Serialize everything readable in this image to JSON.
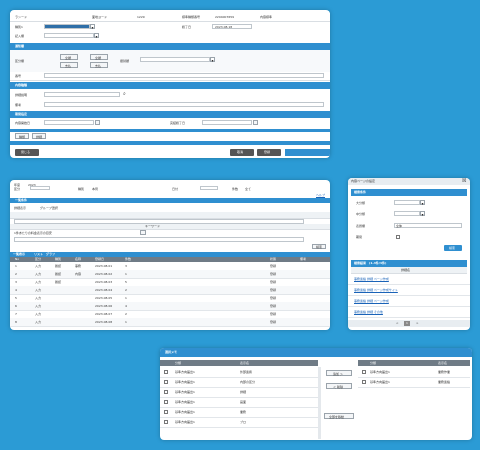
{
  "top_form": {
    "row1": [
      "ランード",
      "面地ヨード",
      "1229",
      "標準種類番号",
      "2204007659",
      "内容標準"
    ],
    "row2": [
      "種別1",
      "2023.08.18"
    ],
    "row3": [
      "記入欄"
    ],
    "section1": "通知欄",
    "s1_labels": [
      "区分欄",
      "番号"
    ],
    "options": [
      "全額",
      "全額",
      "支払",
      "支払",
      "振替額"
    ],
    "section2": "内容種類",
    "s2_labels": [
      "詳細説明",
      "備考"
    ],
    "section3": "期間指定",
    "s3_labels": [
      "内容開始日",
      "完結終了日"
    ],
    "tabs": [
      "種類",
      "詳細"
    ],
    "close_button": "閉じる",
    "cancel_button": "取消",
    "save_button": "登録"
  },
  "list_window": {
    "filter_labels": [
      "年度",
      "区分",
      "種別",
      "日付",
      "件数"
    ],
    "filter_values": [
      "2023",
      "本局",
      "全て"
    ],
    "help_link": "ヘルプ",
    "section": "一覧条件",
    "search_label": "詳細表示",
    "condition_text": "グループ選択",
    "keyword_label": "キーワード",
    "note_text": "1件あたりの料金表示の目安",
    "search_button": "検索",
    "grid_title": "一覧表示",
    "grid_tabs": [
      "リスト",
      "グラフ"
    ],
    "columns": [
      "No",
      "区分",
      "種別",
      "名称",
      "登録日",
      "件数",
      "状態",
      "備考"
    ],
    "rows": [
      [
        "1",
        "入力",
        "確認",
        "事務",
        "2023.08.01",
        "3",
        "登録",
        ""
      ],
      [
        "2",
        "入力",
        "確認",
        "内容",
        "2023.08.02",
        "1",
        "登録",
        ""
      ],
      [
        "3",
        "入力",
        "確認",
        "",
        "2023.08.03",
        "5",
        "登録",
        ""
      ],
      [
        "4",
        "入力",
        "",
        "",
        "2023.08.04",
        "2",
        "登録",
        ""
      ],
      [
        "5",
        "入力",
        "",
        "",
        "2023.08.05",
        "1",
        "登録",
        ""
      ],
      [
        "6",
        "入力",
        "",
        "",
        "2023.08.06",
        "4",
        "登録",
        ""
      ],
      [
        "7",
        "入力",
        "",
        "",
        "2023.08.07",
        "2",
        "登録",
        ""
      ],
      [
        "8",
        "入力",
        "",
        "",
        "2023.08.08",
        "1",
        "登録",
        ""
      ]
    ]
  },
  "side_panel": {
    "title": "内容ページの設定",
    "section1": "検索条件",
    "labels": [
      "大分類",
      "中分類",
      "表題欄",
      "期間"
    ],
    "title_value": "全体",
    "search_button": "検索",
    "section2": "検索結果　(1-4件/4件)",
    "result_header": "詳細名",
    "results": [
      "事務連絡 詳細 ページ作成",
      "事務連絡 詳細 ページ作成サイト",
      "事務連絡 詳細 ページ作成",
      "事務連絡 詳細 その他"
    ],
    "pager": [
      "<",
      "1",
      ">"
    ]
  },
  "transfer": {
    "title": "選択メモ",
    "left_headers": [
      "分類",
      "表示名"
    ],
    "left_rows": [
      [
        "基準方向届出1",
        "外部連携"
      ],
      [
        "基準方向届出1",
        "内部の区分"
      ],
      [
        "基準方向届出1",
        "詳細"
      ],
      [
        "基準方向届出1",
        "画面"
      ],
      [
        "基準方向届出1",
        "業務"
      ],
      [
        "基準方向届出1",
        "ブロ"
      ]
    ],
    "add_button": "追加 ＞",
    "remove_button": "＜ 削除",
    "move_button": "全部を移動",
    "right_headers": [
      "分類",
      "表示名"
    ],
    "right_rows": [
      [
        "基準方向届出1",
        "業務作業"
      ],
      [
        "基準方向届出1",
        "業務連絡"
      ]
    ]
  }
}
